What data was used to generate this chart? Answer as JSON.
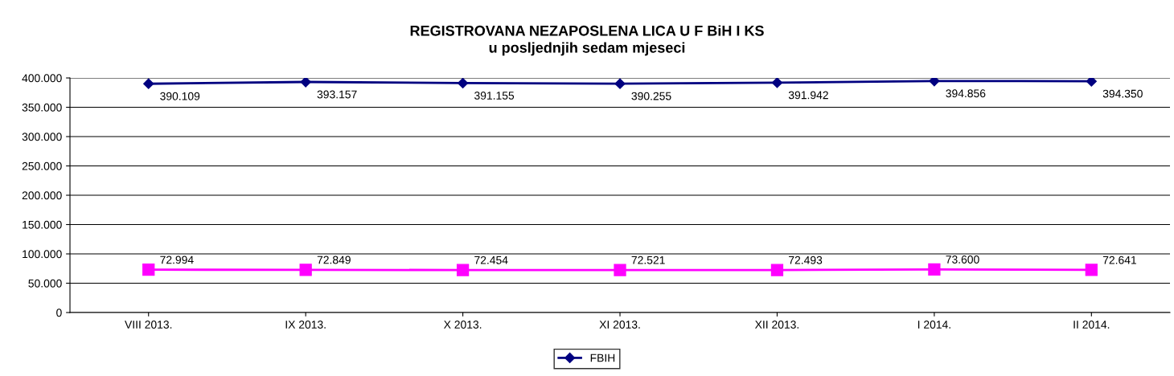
{
  "chart_data": {
    "type": "line",
    "title": "REGISTROVANA NEZAPOSLENA LICA U F BiH I KS",
    "subtitle": "u posljednjih sedam mjeseci",
    "categories": [
      "VIII 2013.",
      "IX 2013.",
      "X 2013.",
      "XI 2013.",
      "XII 2013.",
      "I 2014.",
      "II 2014."
    ],
    "series": [
      {
        "name": "FBIH",
        "color": "#000080",
        "marker": "diamond",
        "values": [
          390109,
          393157,
          391155,
          390255,
          391942,
          394856,
          394350
        ],
        "value_labels": [
          "390.109",
          "393.157",
          "391.155",
          "390.255",
          "391.942",
          "394.856",
          "394.350"
        ]
      },
      {
        "color": "#ff00ff",
        "marker": "square",
        "values": [
          72994,
          72849,
          72454,
          72521,
          72493,
          73600,
          72641
        ],
        "value_labels": [
          "72.994",
          "72.849",
          "72.454",
          "72.521",
          "72.493",
          "73.600",
          "72.641"
        ]
      }
    ],
    "ylim": [
      0,
      400000
    ],
    "yticks": [
      0,
      {
        "value": 50000,
        "label": "50.000"
      },
      {
        "value": 100000,
        "label": "100.000"
      },
      {
        "value": 150000,
        "label": "150.000"
      },
      {
        "value": 200000,
        "label": "200.000"
      },
      {
        "value": 250000,
        "label": "250.000"
      },
      {
        "value": 300000,
        "label": "300.000"
      },
      {
        "value": 350000,
        "label": "350.000"
      },
      {
        "value": 400000,
        "label": "400.000"
      }
    ],
    "grid": "y",
    "legend": "bottom",
    "line_style": "solid"
  }
}
